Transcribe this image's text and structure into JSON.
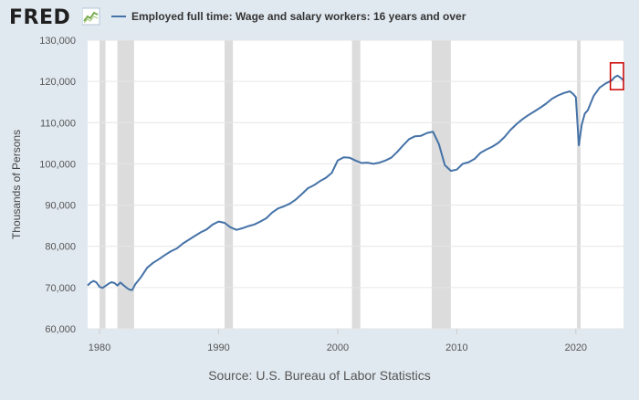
{
  "header": {
    "logo_text": "FRED",
    "logo_icon": "line-chart-icon",
    "legend_label": "Employed full time: Wage and salary workers: 16 years and over"
  },
  "source": "Source: U.S. Bureau of Labor Statistics",
  "colors": {
    "background": "#e1e9f0",
    "plot_background": "#ffffff",
    "series": "#4572a7",
    "recession": "#dcdcdc",
    "highlight_box": "#cc0000"
  },
  "chart_data": {
    "type": "line",
    "title": "",
    "xlabel": "",
    "ylabel": "Thousands of Persons",
    "xlim": [
      1979,
      2024
    ],
    "ylim": [
      60000,
      130000
    ],
    "y_ticks": [
      "60,000",
      "70,000",
      "80,000",
      "90,000",
      "100,000",
      "110,000",
      "120,000",
      "130,000"
    ],
    "y_tick_values": [
      60000,
      70000,
      80000,
      90000,
      100000,
      110000,
      120000,
      130000
    ],
    "x_ticks": [
      "1980",
      "1990",
      "2000",
      "2010",
      "2020"
    ],
    "x_tick_values": [
      1980,
      1990,
      2000,
      2010,
      2020
    ],
    "grid": "horizontal",
    "recessions": [
      [
        1980.0,
        1980.5
      ],
      [
        1981.5,
        1982.9
      ],
      [
        1990.5,
        1991.2
      ],
      [
        2001.2,
        2001.9
      ],
      [
        2007.9,
        2009.5
      ],
      [
        2020.1,
        2020.4
      ]
    ],
    "highlight_range": {
      "x": [
        2022.9,
        2024.0
      ],
      "y": [
        118000,
        124500
      ]
    },
    "series": [
      {
        "name": "Employed full time: Wage and salary workers: 16 years and over",
        "x": [
          1979.0,
          1979.25,
          1979.5,
          1979.75,
          1980.0,
          1980.25,
          1980.5,
          1980.75,
          1981.0,
          1981.25,
          1981.5,
          1981.75,
          1982.0,
          1982.25,
          1982.5,
          1982.75,
          1983.0,
          1983.5,
          1984.0,
          1984.5,
          1985.0,
          1985.5,
          1986.0,
          1986.5,
          1987.0,
          1987.5,
          1988.0,
          1988.5,
          1989.0,
          1989.5,
          1990.0,
          1990.5,
          1991.0,
          1991.5,
          1992.0,
          1992.5,
          1993.0,
          1993.5,
          1994.0,
          1994.5,
          1995.0,
          1995.5,
          1996.0,
          1996.5,
          1997.0,
          1997.5,
          1998.0,
          1998.5,
          1999.0,
          1999.5,
          2000.0,
          2000.5,
          2001.0,
          2001.5,
          2002.0,
          2002.5,
          2003.0,
          2003.5,
          2004.0,
          2004.5,
          2005.0,
          2005.5,
          2006.0,
          2006.5,
          2007.0,
          2007.5,
          2008.0,
          2008.5,
          2009.0,
          2009.5,
          2010.0,
          2010.5,
          2011.0,
          2011.5,
          2012.0,
          2012.5,
          2013.0,
          2013.5,
          2014.0,
          2014.5,
          2015.0,
          2015.5,
          2016.0,
          2016.5,
          2017.0,
          2017.5,
          2018.0,
          2018.5,
          2019.0,
          2019.5,
          2019.75,
          2020.0,
          2020.25,
          2020.5,
          2020.75,
          2021.0,
          2021.5,
          2022.0,
          2022.5,
          2023.0,
          2023.25,
          2023.5,
          2023.75,
          2024.0
        ],
        "values": [
          70500,
          71200,
          71600,
          71200,
          70200,
          69900,
          70400,
          70900,
          71300,
          71100,
          70500,
          71200,
          70600,
          70000,
          69500,
          69400,
          70800,
          72600,
          74800,
          76000,
          76900,
          77900,
          78800,
          79500,
          80700,
          81600,
          82500,
          83400,
          84100,
          85300,
          86000,
          85700,
          84600,
          84000,
          84400,
          84900,
          85300,
          86000,
          86800,
          88200,
          89200,
          89700,
          90400,
          91400,
          92700,
          94100,
          94800,
          95800,
          96600,
          97800,
          100800,
          101600,
          101500,
          100800,
          100200,
          100300,
          100000,
          100300,
          100800,
          101500,
          102900,
          104500,
          106000,
          106700,
          106800,
          107500,
          107800,
          104800,
          99700,
          98300,
          98600,
          100000,
          100400,
          101200,
          102700,
          103500,
          104200,
          105100,
          106500,
          108200,
          109600,
          110800,
          111800,
          112700,
          113600,
          114600,
          115800,
          116600,
          117200,
          117600,
          117000,
          116200,
          104500,
          109500,
          112200,
          113000,
          116500,
          118500,
          119500,
          120200,
          121000,
          121400,
          120900,
          120300
        ]
      }
    ]
  }
}
